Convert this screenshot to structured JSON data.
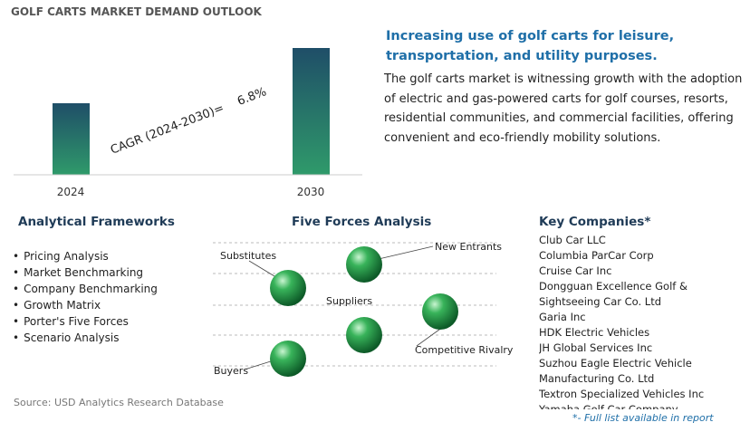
{
  "header": {
    "title": "GOLF CARTS MARKET DEMAND OUTLOOK"
  },
  "bar_chart": {
    "categories": [
      "2024",
      "2030"
    ],
    "annotation_label": "CAGR (2024-2030)=",
    "annotation_value": "6.8%"
  },
  "summary": {
    "heading": "Increasing use of golf carts for leisure, transportation, and utility purposes.",
    "body": "The golf carts market is witnessing growth with the adoption of electric and gas-powered carts for golf courses, resorts, residential communities, and commercial facilities, offering convenient and eco-friendly mobility solutions."
  },
  "frameworks": {
    "title": "Analytical Frameworks",
    "items": [
      "Pricing Analysis",
      "Market Benchmarking",
      "Company Benchmarking",
      "Growth Matrix",
      "Porter's Five Forces",
      "Scenario Analysis"
    ]
  },
  "five_forces": {
    "title": "Five Forces Analysis",
    "labels": [
      "Substitutes",
      "New Entrants",
      "Suppliers",
      "Competitive Rivalry",
      "Buyers"
    ]
  },
  "companies": {
    "title": "Key Companies*",
    "items": [
      "Club Car LLC",
      "Columbia ParCar Corp",
      "Cruise Car Inc",
      "Dongguan Excellence Golf & Sightseeing Car Co. Ltd",
      "Garia Inc",
      "HDK Electric Vehicles",
      "JH Global Services Inc",
      "Suzhou Eagle Electric Vehicle Manufacturing Co. Ltd",
      "Textron Specialized Vehicles Inc",
      "Yamaha Golf-Car Company"
    ],
    "footnote": "*- Full list available in report"
  },
  "source": "Source: USD Analytics Research Database"
}
